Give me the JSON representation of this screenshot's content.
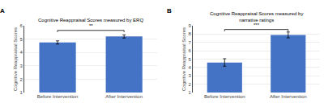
{
  "chart_data": [
    {
      "type": "bar",
      "title": "Cognitive Reappraisal Scores measured by ERQ",
      "ylabel": "Cognitive Reappraisal Scores",
      "categories": [
        "Before Intervention",
        "After Intervention"
      ],
      "values": [
        4.75,
        5.2
      ],
      "errors": [
        0.12,
        0.12
      ],
      "ylim": [
        1,
        6
      ],
      "yticks": [
        1,
        2,
        3,
        4,
        5,
        6
      ],
      "color": "#4472c4",
      "grid": true,
      "label": "A",
      "significance": {
        "text": "**",
        "y": 5.72,
        "bracket_y": 5.65
      }
    },
    {
      "type": "bar",
      "title": "Cognitive Reappraisal Scores measured by\nnarrative ratings",
      "ylabel": "Cognitive Reappraisal Scores",
      "categories": [
        "Before Intervention",
        "After Intervention"
      ],
      "values": [
        4.6,
        7.9
      ],
      "errors": [
        0.45,
        0.35
      ],
      "ylim": [
        1,
        9
      ],
      "yticks": [
        1,
        2,
        3,
        4,
        5,
        6,
        7,
        8,
        9
      ],
      "color": "#4472c4",
      "grid": true,
      "label": "B",
      "significance": {
        "text": "***",
        "y": 8.65,
        "bracket_y": 8.55
      }
    }
  ]
}
